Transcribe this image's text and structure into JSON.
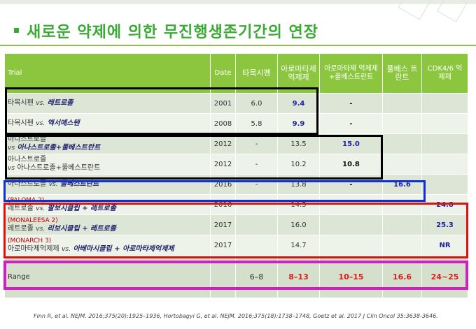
{
  "title": "새로운 약제에 의한 무진행생존기간의 연장",
  "header": {
    "trial": "Trial",
    "date": "Date",
    "tamoxifen": "타목시펜",
    "ai": "아로마타제 억제제",
    "ai_fulv": "아로마타제 억제제 +풀베스트란트",
    "fulv": "풀베스 트란트",
    "cdk": "CDK4/6 억제제"
  },
  "rows": [
    {
      "tag": "",
      "a": "타목시펜",
      "vs": "vs.",
      "b": "레트로졸",
      "date": "2001",
      "tam": "6.0",
      "ai": "9.4",
      "ai_fulv": "-",
      "fulv": "",
      "cdk": ""
    },
    {
      "tag": "",
      "a": "타목시펜",
      "vs": "vs.",
      "b": "엑서메스텐",
      "date": "2008",
      "tam": "5.8",
      "ai": "9.9",
      "ai_fulv": "-",
      "fulv": "",
      "cdk": ""
    },
    {
      "tag": "",
      "a": "아나스트로졸",
      "vs": "vs",
      "b": "아나스트로졸+풀베스트란트",
      "date": "2012",
      "tam": "-",
      "ai": "13.5",
      "ai_fulv": "15.0",
      "fulv": "",
      "cdk": ""
    },
    {
      "tag": "",
      "a": "아나스트로졸",
      "vs": "vs",
      "b": "아나스트로졸+풀베스트란트",
      "date": "2012",
      "tam": "-",
      "ai": "10.2",
      "ai_fulv": "10.8",
      "fulv": "",
      "cdk": ""
    },
    {
      "tag": "",
      "a": "아나스트로졸",
      "vs": "vs.",
      "b": "풀베스트란트",
      "date": "2016",
      "tam": "-",
      "ai": "13.8",
      "ai_fulv": "-",
      "fulv": "16.6",
      "cdk": ""
    },
    {
      "tag": "(PALOMA 2)",
      "a": "레트로졸",
      "vs": "vs.",
      "b": "팔보시클립 + 레트로졸",
      "date": "2016",
      "tam": "",
      "ai": "14.5",
      "ai_fulv": "",
      "fulv": "",
      "cdk": "24.8"
    },
    {
      "tag": "(MONALEESA 2)",
      "a": "레트로졸",
      "vs": "vs.",
      "b": "리보시클립 + 레트로졸",
      "date": "2017",
      "tam": "",
      "ai": "16.0",
      "ai_fulv": "",
      "fulv": "",
      "cdk": "25.3"
    },
    {
      "tag": "(MONARCH 3)",
      "a": "아로마타제억제제",
      "vs": "vs.",
      "b": "아베마시클립 + 아로마타제억제제",
      "date": "2017",
      "tam": "",
      "ai": "14.7",
      "ai_fulv": "",
      "fulv": "",
      "cdk": "NR"
    }
  ],
  "range": {
    "label": "Range",
    "tam": "6–8",
    "ai": "8–13",
    "ai_fulv": "10–15",
    "fulv": "16.6",
    "cdk": "24~25"
  },
  "citation": "Finn R, et al. NEJM. 2016;375(20):1925–1936, Hortobagyi G, et al. NEJM. 2016;375(18):1738–1748, Goetz et al. 2017 J Clin Oncol 35:3638-3646.",
  "colors": {
    "title": "#3aaa35",
    "header_bg": "#8cc63f",
    "box_black": "#000000",
    "box_blue": "#1030d0",
    "box_red": "#e01010",
    "box_magenta": "#d020c0"
  }
}
